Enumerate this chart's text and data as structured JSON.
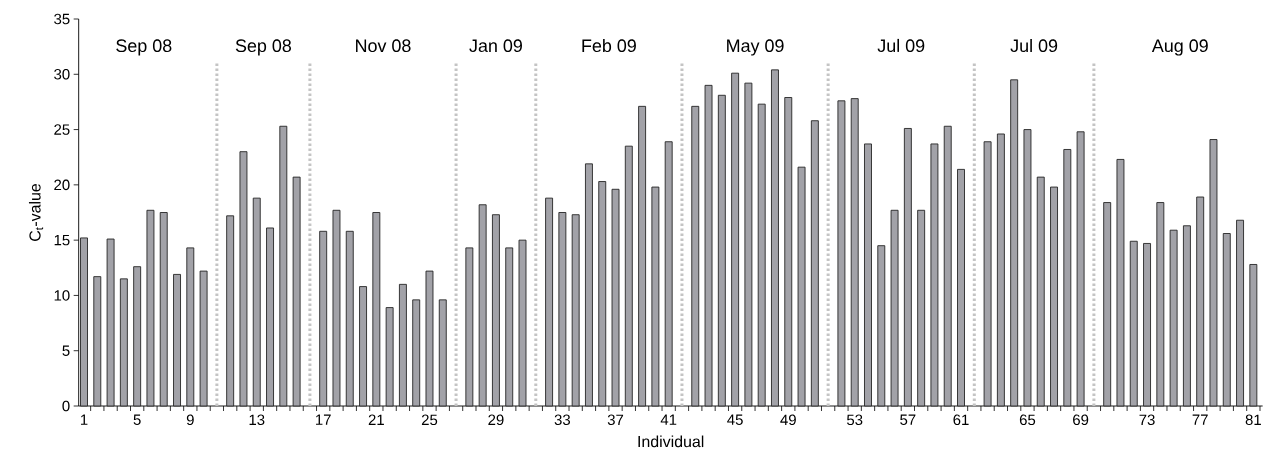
{
  "chart_data": {
    "type": "bar",
    "xlabel": "Individual",
    "ylabel": "C$_{t}$-value",
    "color": "#a2a2a8",
    "categories": [
      "1",
      null,
      null,
      null,
      "5",
      null,
      null,
      null,
      "9",
      null,
      null,
      null,
      null,
      "13",
      null,
      null,
      null,
      null,
      "17",
      null,
      null,
      null,
      "21",
      null,
      null,
      null,
      "25",
      null,
      null,
      null,
      null,
      "29",
      null,
      null,
      null,
      null,
      "33",
      null,
      null,
      null,
      "37",
      null,
      null,
      null,
      "41",
      null,
      null,
      null,
      null,
      "45",
      null,
      null,
      null,
      "49",
      null,
      null,
      null,
      null,
      "53",
      null,
      null,
      null,
      "57",
      null,
      null,
      null,
      "61",
      null,
      null,
      null,
      null,
      "65",
      null,
      null,
      null,
      "69",
      null,
      null,
      null,
      null,
      "73",
      null,
      null,
      null,
      "77",
      null,
      null,
      null,
      "81"
    ],
    "values": [
      15.2,
      11.7,
      15.1,
      11.5,
      12.6,
      17.7,
      17.5,
      11.9,
      14.3,
      12.2,
      null,
      17.2,
      23.0,
      18.8,
      16.1,
      25.3,
      20.7,
      null,
      15.8,
      17.7,
      15.8,
      10.8,
      17.5,
      8.9,
      11.0,
      9.6,
      12.2,
      9.6,
      null,
      14.3,
      18.2,
      17.3,
      14.3,
      15.0,
      null,
      18.8,
      17.5,
      17.3,
      21.9,
      20.3,
      19.6,
      23.5,
      27.1,
      19.8,
      23.9,
      null,
      27.1,
      29.0,
      28.1,
      30.1,
      29.2,
      27.3,
      30.4,
      27.9,
      21.6,
      25.8,
      null,
      27.6,
      27.8,
      23.7,
      14.5,
      17.7,
      25.1,
      17.7,
      23.7,
      25.3,
      21.4,
      null,
      23.9,
      24.6,
      29.5,
      25.0,
      20.7,
      19.8,
      23.2,
      24.8,
      null,
      18.4,
      22.3,
      14.9,
      14.7,
      18.4,
      15.9,
      16.3,
      18.9,
      24.1,
      15.6,
      16.8,
      12.8
    ],
    "ylim": [
      0,
      35
    ],
    "yticks": [
      0,
      5,
      10,
      15,
      20,
      25,
      30,
      35
    ],
    "annotations": [
      "Sep 08",
      "Sep 08",
      "Nov 08",
      "Jan 09",
      "Feb 09",
      "May 09",
      "Jul 09",
      "Jul 09",
      "Aug 09"
    ],
    "tick_labels": "xy"
  }
}
